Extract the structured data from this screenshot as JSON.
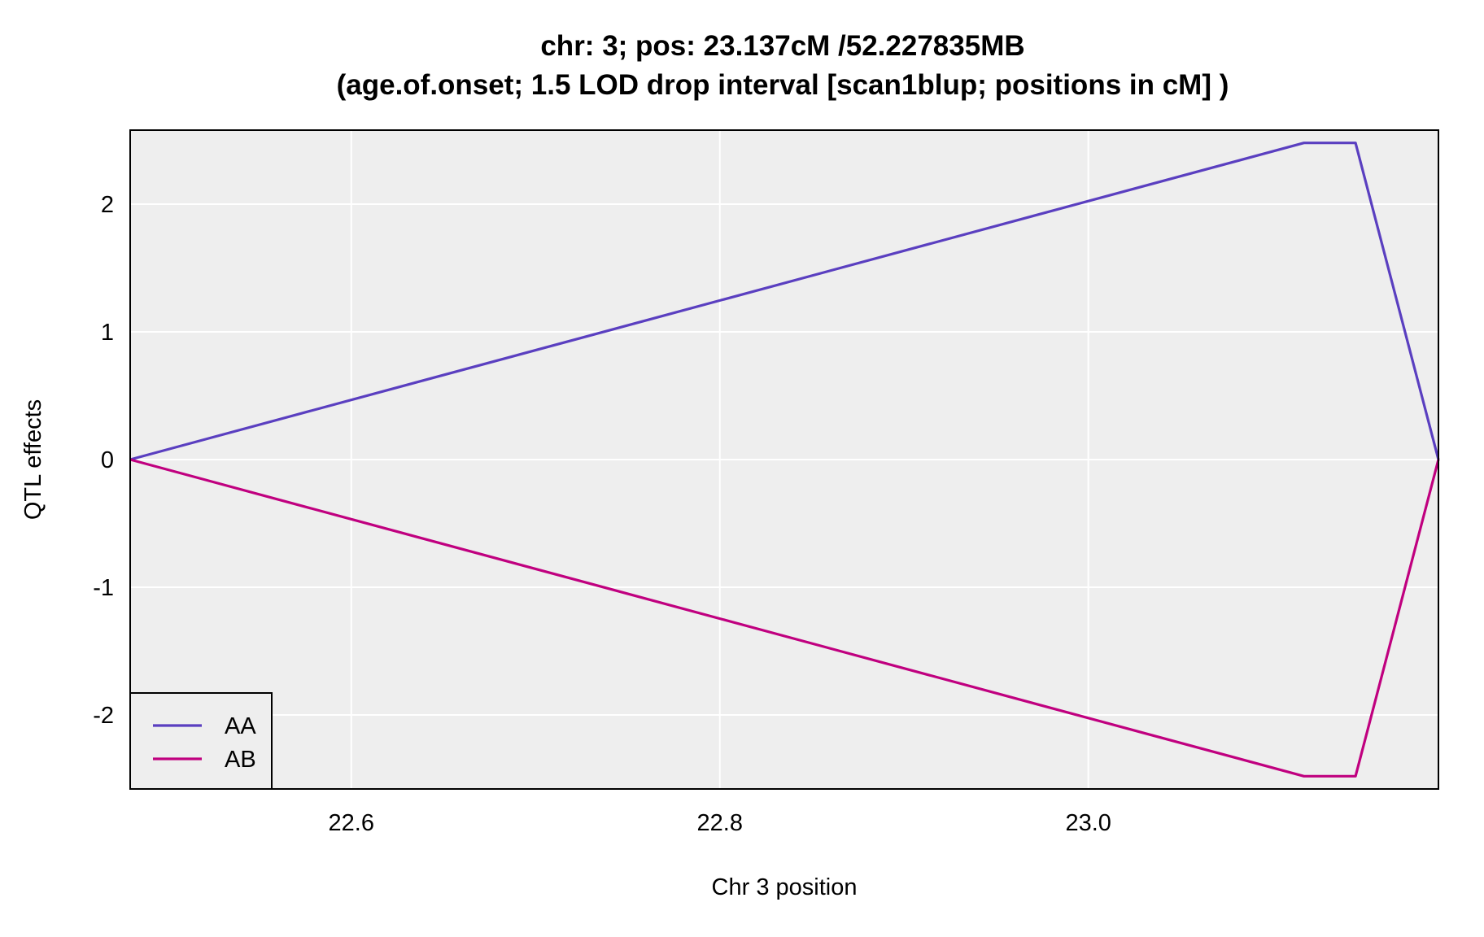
{
  "chart_data": {
    "type": "line",
    "title_line1": "chr: 3; pos: 23.137cM /52.227835MB",
    "title_line2": "(age.of.onset; 1.5 LOD drop interval [scan1blup; positions in cM] )",
    "xlabel": "Chr 3 position",
    "ylabel": "QTL effects",
    "xlim": [
      22.48,
      23.19
    ],
    "ylim": [
      -2.58,
      2.58
    ],
    "x_ticks": [
      22.6,
      22.8,
      23.0
    ],
    "x_tick_labels": [
      "22.6",
      "22.8",
      "23.0"
    ],
    "y_ticks": [
      -2,
      -1,
      0,
      1,
      2
    ],
    "y_tick_labels": [
      "-2",
      "-1",
      "0",
      "1",
      "2"
    ],
    "grid": true,
    "legend_position": "bottom-left",
    "series": [
      {
        "name": "AA",
        "color": "#5a3fc0",
        "x": [
          22.48,
          23.117,
          23.145,
          23.19
        ],
        "y": [
          0,
          2.48,
          2.48,
          0
        ]
      },
      {
        "name": "AB",
        "color": "#c0007f",
        "x": [
          22.48,
          23.117,
          23.145,
          23.19
        ],
        "y": [
          0,
          -2.48,
          -2.48,
          0
        ]
      }
    ]
  }
}
